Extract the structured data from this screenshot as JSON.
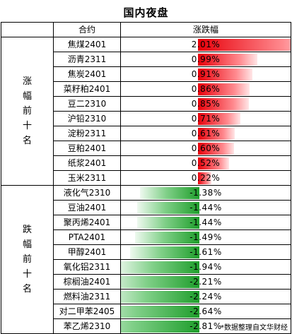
{
  "title": "国内夜盘",
  "footnote": "*数据整理自文华财经",
  "colors": {
    "positive": "#e8000a",
    "negative": "#1f9e2c"
  },
  "chart_data": {
    "type": "table",
    "columns": [
      "合约",
      "涨跌幅"
    ],
    "groups": [
      {
        "label": "涨幅前十名",
        "rows": [
          {
            "name": "焦煤2401",
            "value": 2.01,
            "label": "2.01%"
          },
          {
            "name": "沥青2311",
            "value": 0.99,
            "label": "0.99%"
          },
          {
            "name": "焦炭2401",
            "value": 0.91,
            "label": "0.91%"
          },
          {
            "name": "菜籽粕2401",
            "value": 0.86,
            "label": "0.86%"
          },
          {
            "name": "豆二2310",
            "value": 0.85,
            "label": "0.85%"
          },
          {
            "name": "沪铅2310",
            "value": 0.71,
            "label": "0.71%"
          },
          {
            "name": "淀粉2311",
            "value": 0.61,
            "label": "0.61%"
          },
          {
            "name": "豆粕2401",
            "value": 0.6,
            "label": "0.60%"
          },
          {
            "name": "纸浆2401",
            "value": 0.52,
            "label": "0.52%"
          },
          {
            "name": "玉米2311",
            "value": 0.22,
            "label": "0.22%"
          }
        ]
      },
      {
        "label": "跌幅前十名",
        "rows": [
          {
            "name": "液化气2310",
            "value": -1.38,
            "label": "-1.38%"
          },
          {
            "name": "豆油2401",
            "value": -1.44,
            "label": "-1.44%"
          },
          {
            "name": "聚丙烯2401",
            "value": -1.44,
            "label": "-1.44%"
          },
          {
            "name": "PTA2401",
            "value": -1.49,
            "label": "-1.49%"
          },
          {
            "name": "甲醇2401",
            "value": -1.61,
            "label": "-1.61%"
          },
          {
            "name": "氧化铝2311",
            "value": -1.94,
            "label": "-1.94%"
          },
          {
            "name": "棕榈油2401",
            "value": -2.21,
            "label": "-2.21%"
          },
          {
            "name": "燃料油2311",
            "value": -2.24,
            "label": "-2.24%"
          },
          {
            "name": "对二甲苯2405",
            "value": -2.64,
            "label": "-2.64%"
          },
          {
            "name": "苯乙烯2310",
            "value": -2.81,
            "label": "-2.81%"
          }
        ]
      }
    ]
  }
}
